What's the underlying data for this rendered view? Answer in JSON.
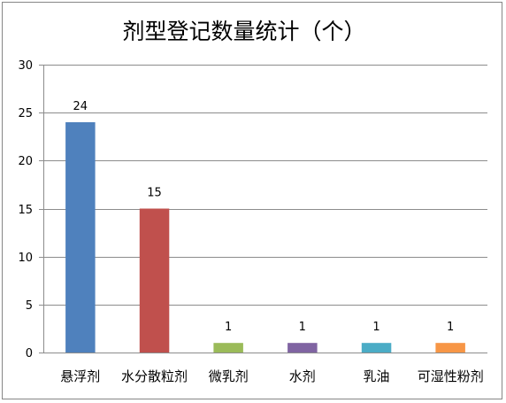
{
  "chart_data": {
    "type": "bar",
    "title": "剂型登记数量统计（个）",
    "categories": [
      "悬浮剂",
      "水分散粒剂",
      "微乳剂",
      "水剂",
      "乳油",
      "可湿性粉剂"
    ],
    "values": [
      24,
      15,
      1,
      1,
      1,
      1
    ],
    "colors": [
      "#4f81bd",
      "#c0504d",
      "#9bbb59",
      "#8064a2",
      "#4bacc6",
      "#f79646"
    ],
    "ylim": [
      0,
      30
    ],
    "yticks": [
      0,
      5,
      10,
      15,
      20,
      25,
      30
    ],
    "grid": true,
    "legend": "none",
    "data_labels": true
  }
}
